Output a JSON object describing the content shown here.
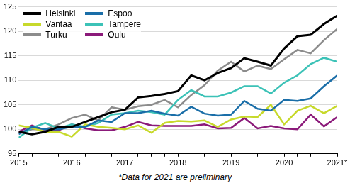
{
  "chart_data": {
    "type": "line",
    "categories": [
      "2015",
      null,
      null,
      null,
      "2016",
      null,
      null,
      null,
      "2017",
      null,
      null,
      null,
      "2018",
      null,
      null,
      null,
      "2019",
      null,
      null,
      null,
      "2020",
      null,
      null,
      null,
      "2021*"
    ],
    "series": [
      {
        "name": "Helsinki",
        "color": "#000000",
        "values": [
          99.5,
          99,
          99.5,
          100.5,
          100.5,
          101.5,
          102.5,
          103.5,
          104,
          106.5,
          106.8,
          107.2,
          107.8,
          111,
          110,
          111.5,
          112.5,
          114.5,
          113.8,
          113,
          116.5,
          119,
          119.3,
          121.5,
          123.2
        ]
      },
      {
        "name": "Espoo",
        "color": "#1a6ea8",
        "values": [
          99,
          100.5,
          100,
          100,
          100.5,
          100.5,
          101.8,
          101.5,
          103.3,
          103.3,
          103.8,
          103.2,
          102.8,
          104.6,
          103.2,
          102.8,
          103,
          105.8,
          104.2,
          103.8,
          106,
          105.8,
          106.3,
          108.8,
          111
        ]
      },
      {
        "name": "Vantaa",
        "color": "#c7d92b",
        "values": [
          100.8,
          100.3,
          99.5,
          99.5,
          98.5,
          101,
          100.5,
          100.3,
          100,
          100.8,
          99.3,
          101.3,
          101.7,
          101.6,
          101.8,
          100.5,
          102,
          102.6,
          102.5,
          105,
          101,
          103.8,
          104.8,
          103.3,
          104.8
        ]
      },
      {
        "name": "Tampere",
        "color": "#3cc2b7",
        "values": [
          98.3,
          100.3,
          101.3,
          100.2,
          101,
          100.5,
          101.3,
          103,
          103.3,
          103.8,
          103.5,
          103,
          106,
          108,
          106.7,
          106.7,
          107.5,
          108.8,
          108.8,
          107.3,
          109.5,
          111,
          113.3,
          114.6,
          113.8
        ]
      },
      {
        "name": "Turku",
        "color": "#8c8c8c",
        "values": [
          99.3,
          100,
          100,
          101,
          102.3,
          103,
          101.8,
          104.5,
          104,
          104.7,
          105,
          106,
          104.5,
          107,
          109,
          112,
          113.8,
          111.8,
          113,
          112.3,
          114.3,
          116.2,
          115.5,
          118.2,
          120.5
        ]
      },
      {
        "name": "Oulu",
        "color": "#8b1a7a",
        "values": [
          99.5,
          100.8,
          99.8,
          99.8,
          101,
          100.2,
          99.8,
          99.8,
          100.5,
          101.5,
          100.8,
          100.7,
          100.7,
          100.7,
          101,
          100.2,
          100.3,
          102.3,
          100.2,
          100.7,
          100.2,
          100,
          103,
          100.6,
          102.5
        ]
      }
    ],
    "ylim": [
      95,
      125
    ],
    "yticks": [
      95,
      100,
      105,
      110,
      115,
      120,
      125
    ],
    "grid": true,
    "legend": "top-left",
    "annotations": [
      "*Data for 2021 are preliminary"
    ]
  }
}
